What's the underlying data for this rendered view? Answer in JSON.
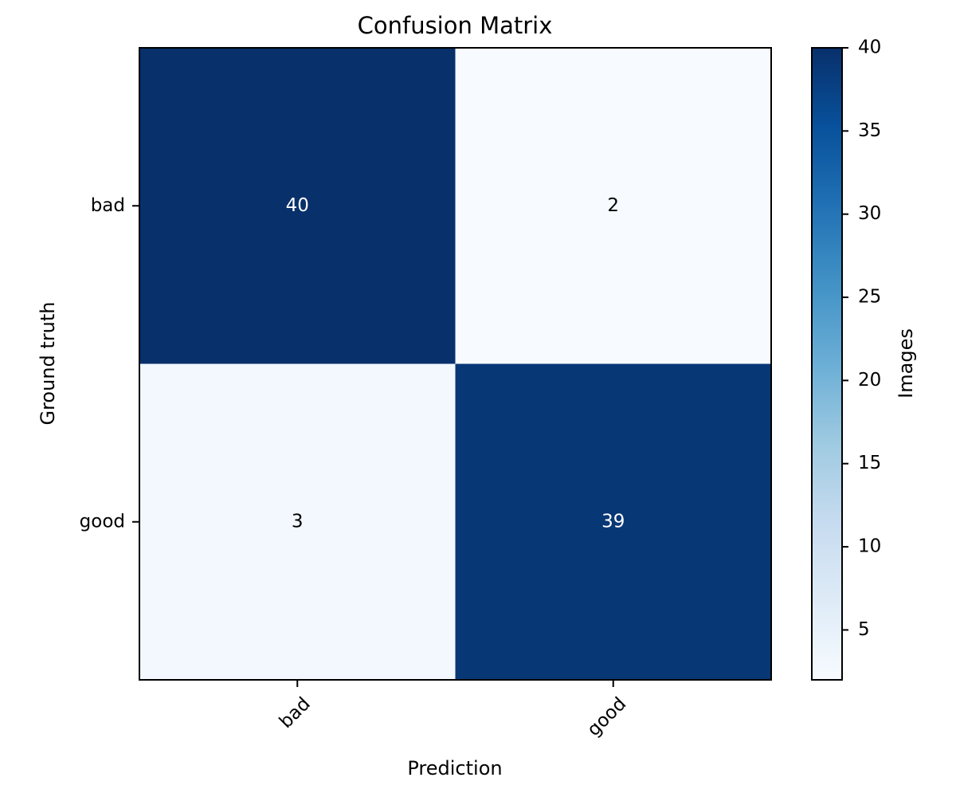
{
  "chart_data": {
    "type": "heatmap",
    "title": "Confusion Matrix",
    "xlabel": "Prediction",
    "ylabel": "Ground truth",
    "x_categories": [
      "bad",
      "good"
    ],
    "y_categories": [
      "bad",
      "good"
    ],
    "values": [
      [
        40,
        2
      ],
      [
        3,
        39
      ]
    ],
    "colorbar": {
      "label": "Images",
      "range": [
        2,
        40
      ],
      "ticks": [
        "5",
        "10",
        "15",
        "20",
        "25",
        "30",
        "35",
        "40"
      ],
      "colormap": [
        "#f7fbff",
        "#deebf7",
        "#c6dbef",
        "#9ecae1",
        "#6baed6",
        "#4292c6",
        "#2171b5",
        "#08519c",
        "#08306b"
      ]
    },
    "grid": false,
    "text_colors": {
      "dark_cell": "#ffffff",
      "light_cell": "#000000"
    }
  }
}
